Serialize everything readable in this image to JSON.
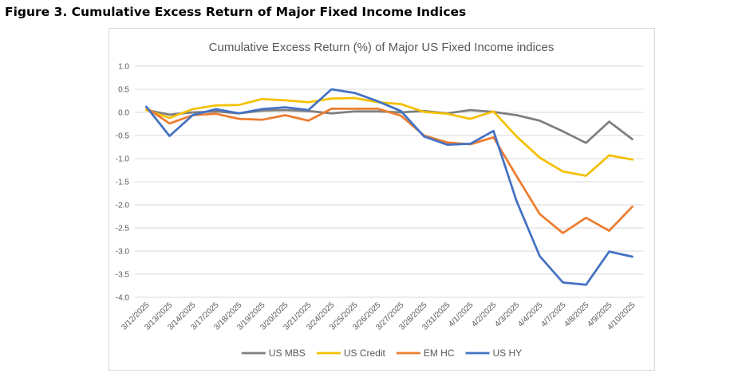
{
  "figure": {
    "title": "Figure 3. Cumulative Excess Return of Major Fixed Income Indices"
  },
  "chart_data": {
    "type": "line",
    "title": "Cumulative Excess Return (%) of Major US Fixed Income indices",
    "xlabel": "",
    "ylabel": "",
    "ylim": [
      -4.0,
      1.0
    ],
    "yticks": [
      1.0,
      0.5,
      0.0,
      -0.5,
      -1.0,
      -1.5,
      -2.0,
      -2.5,
      -3.0,
      -3.5,
      -4.0
    ],
    "ytick_labels": [
      "1.0",
      "0.5",
      "0.0",
      "-0.5",
      "-1.0",
      "-1.5",
      "-2.0",
      "-2.5",
      "-3.0",
      "-3.5",
      "-4.0"
    ],
    "grid": true,
    "legend_position": "bottom",
    "categories": [
      "3/12/2025",
      "3/13/2025",
      "3/14/2025",
      "3/17/2025",
      "3/18/2025",
      "3/19/2025",
      "3/20/2025",
      "3/21/2025",
      "3/24/2025",
      "3/25/2025",
      "3/26/2025",
      "3/27/2025",
      "3/28/2025",
      "3/31/2025",
      "4/1/2025",
      "4/2/2025",
      "4/3/2025",
      "4/4/2025",
      "4/7/2025",
      "4/8/2025",
      "4/9/2025",
      "4/10/2025"
    ],
    "series": [
      {
        "name": "US MBS",
        "color": "#7f7f7f",
        "values": [
          0.05,
          -0.05,
          0.0,
          0.02,
          -0.02,
          0.04,
          0.05,
          0.03,
          -0.02,
          0.02,
          0.02,
          0.0,
          0.03,
          -0.02,
          0.05,
          0.01,
          -0.06,
          -0.18,
          -0.41,
          -0.66,
          -0.2,
          -0.58
        ]
      },
      {
        "name": "US Credit",
        "color": "#f5c000",
        "values": [
          0.05,
          -0.12,
          0.07,
          0.15,
          0.16,
          0.29,
          0.26,
          0.22,
          0.3,
          0.31,
          0.22,
          0.18,
          0.01,
          -0.03,
          -0.14,
          0.02,
          -0.52,
          -0.98,
          -1.28,
          -1.37,
          -0.93,
          -1.02
        ]
      },
      {
        "name": "EM HC",
        "color": "#ed7d31",
        "values": [
          0.1,
          -0.24,
          -0.06,
          -0.03,
          -0.14,
          -0.16,
          -0.06,
          -0.18,
          0.08,
          0.08,
          0.08,
          -0.07,
          -0.5,
          -0.65,
          -0.69,
          -0.54,
          -1.38,
          -2.2,
          -2.61,
          -2.28,
          -2.56,
          -2.04
        ]
      },
      {
        "name": "US HY",
        "color": "#4472c4",
        "values": [
          0.12,
          -0.51,
          -0.06,
          0.07,
          -0.02,
          0.07,
          0.11,
          0.05,
          0.5,
          0.42,
          0.24,
          0.03,
          -0.52,
          -0.7,
          -0.68,
          -0.4,
          -1.92,
          -3.11,
          -3.68,
          -3.73,
          -3.01,
          -3.12
        ]
      }
    ]
  }
}
